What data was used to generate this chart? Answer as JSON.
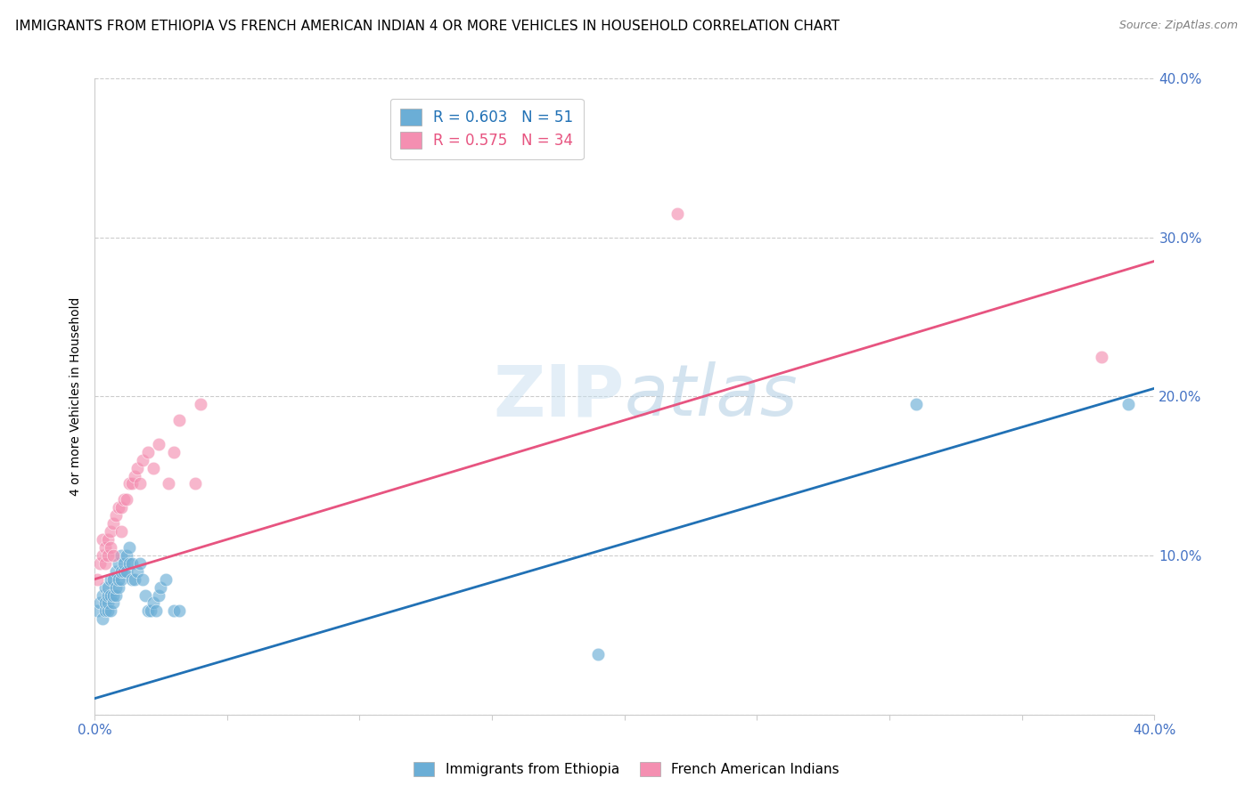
{
  "title": "IMMIGRANTS FROM ETHIOPIA VS FRENCH AMERICAN INDIAN 4 OR MORE VEHICLES IN HOUSEHOLD CORRELATION CHART",
  "source": "Source: ZipAtlas.com",
  "ylabel": "4 or more Vehicles in Household",
  "xlim": [
    0.0,
    0.4
  ],
  "ylim": [
    0.0,
    0.4
  ],
  "xticks": [
    0.0,
    0.05,
    0.1,
    0.15,
    0.2,
    0.25,
    0.3,
    0.35,
    0.4
  ],
  "yticks": [
    0.0,
    0.1,
    0.2,
    0.3,
    0.4
  ],
  "xticklabels_start": "0.0%",
  "xticklabels_end": "40.0%",
  "yticklabel_10": "10.0%",
  "yticklabel_20": "20.0%",
  "yticklabel_30": "30.0%",
  "yticklabel_40": "40.0%",
  "legend1_label": "R = 0.603   N = 51",
  "legend2_label": "R = 0.575   N = 34",
  "series1_color": "#6baed6",
  "series2_color": "#f48fb1",
  "line1_color": "#2171b5",
  "line2_color": "#e75480",
  "watermark_zip": "ZIP",
  "watermark_atlas": "atlas",
  "blue_scatter_x": [
    0.001,
    0.002,
    0.003,
    0.003,
    0.004,
    0.004,
    0.004,
    0.005,
    0.005,
    0.005,
    0.005,
    0.006,
    0.006,
    0.006,
    0.007,
    0.007,
    0.007,
    0.008,
    0.008,
    0.008,
    0.009,
    0.009,
    0.009,
    0.01,
    0.01,
    0.01,
    0.011,
    0.011,
    0.012,
    0.012,
    0.013,
    0.013,
    0.014,
    0.014,
    0.015,
    0.016,
    0.017,
    0.018,
    0.019,
    0.02,
    0.021,
    0.022,
    0.023,
    0.024,
    0.025,
    0.027,
    0.03,
    0.032,
    0.19,
    0.31,
    0.39
  ],
  "blue_scatter_y": [
    0.065,
    0.07,
    0.06,
    0.075,
    0.065,
    0.07,
    0.08,
    0.065,
    0.07,
    0.075,
    0.08,
    0.065,
    0.075,
    0.085,
    0.07,
    0.075,
    0.085,
    0.075,
    0.08,
    0.09,
    0.08,
    0.085,
    0.095,
    0.085,
    0.09,
    0.1,
    0.09,
    0.095,
    0.09,
    0.1,
    0.095,
    0.105,
    0.085,
    0.095,
    0.085,
    0.09,
    0.095,
    0.085,
    0.075,
    0.065,
    0.065,
    0.07,
    0.065,
    0.075,
    0.08,
    0.085,
    0.065,
    0.065,
    0.038,
    0.195,
    0.195
  ],
  "pink_scatter_x": [
    0.001,
    0.002,
    0.003,
    0.003,
    0.004,
    0.004,
    0.005,
    0.005,
    0.006,
    0.006,
    0.007,
    0.007,
    0.008,
    0.009,
    0.01,
    0.01,
    0.011,
    0.012,
    0.013,
    0.014,
    0.015,
    0.016,
    0.017,
    0.018,
    0.02,
    0.022,
    0.024,
    0.028,
    0.03,
    0.032,
    0.038,
    0.04,
    0.22,
    0.38
  ],
  "pink_scatter_y": [
    0.085,
    0.095,
    0.1,
    0.11,
    0.095,
    0.105,
    0.1,
    0.11,
    0.105,
    0.115,
    0.1,
    0.12,
    0.125,
    0.13,
    0.115,
    0.13,
    0.135,
    0.135,
    0.145,
    0.145,
    0.15,
    0.155,
    0.145,
    0.16,
    0.165,
    0.155,
    0.17,
    0.145,
    0.165,
    0.185,
    0.145,
    0.195,
    0.315,
    0.225
  ],
  "blue_line_x0": 0.0,
  "blue_line_y0": 0.01,
  "blue_line_x1": 0.4,
  "blue_line_y1": 0.205,
  "pink_line_x0": 0.0,
  "pink_line_y0": 0.085,
  "pink_line_x1": 0.4,
  "pink_line_y1": 0.285,
  "title_fontsize": 11,
  "axis_tick_color": "#4472c4",
  "tick_fontsize": 11,
  "ylabel_fontsize": 10,
  "legend_label1_color": "#2171b5",
  "legend_label2_color": "#e75480"
}
